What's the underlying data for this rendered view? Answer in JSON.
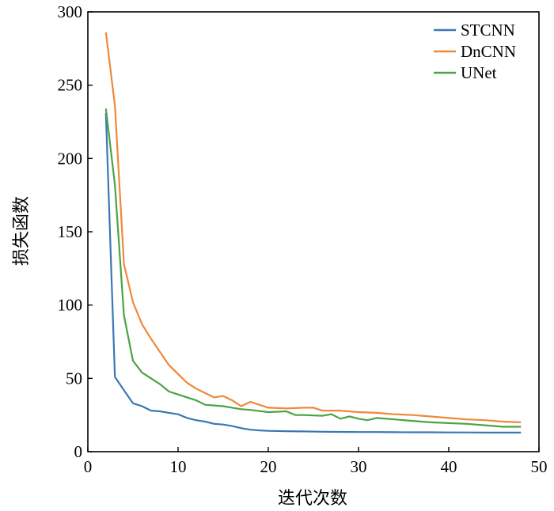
{
  "chart_data": {
    "type": "line",
    "title": "",
    "xlabel": "迭代次数",
    "ylabel": "损失函数",
    "xlim": [
      0,
      50
    ],
    "ylim": [
      0,
      300
    ],
    "xticks": [
      0,
      10,
      20,
      30,
      40,
      50
    ],
    "yticks": [
      0,
      50,
      100,
      150,
      200,
      250,
      300
    ],
    "grid": false,
    "legend_position": "top-right",
    "series": [
      {
        "name": "STCNN",
        "color": "#3a78b5",
        "x": [
          2,
          3,
          4,
          5,
          6,
          7,
          8,
          9,
          10,
          11,
          12,
          13,
          14,
          15,
          16,
          17,
          18,
          19,
          20,
          22,
          24,
          26,
          28,
          30,
          32,
          34,
          36,
          38,
          40,
          42,
          44,
          46,
          48
        ],
        "y": [
          231,
          51,
          42,
          33,
          31,
          28,
          27.5,
          26.5,
          25.5,
          23,
          21.5,
          20.5,
          19,
          18.5,
          17.5,
          16,
          15,
          14.5,
          14.2,
          14,
          13.8,
          13.6,
          13.5,
          13.4,
          13.4,
          13.3,
          13.2,
          13.2,
          13.1,
          13.1,
          13,
          13,
          13
        ]
      },
      {
        "name": "DnCNN",
        "color": "#f0883a",
        "x": [
          2,
          3,
          4,
          5,
          6,
          7,
          8,
          9,
          10,
          11,
          12,
          13,
          14,
          15,
          16,
          17,
          18,
          20,
          22,
          24,
          25,
          26,
          28,
          30,
          32,
          34,
          36,
          38,
          40,
          42,
          44,
          46,
          48
        ],
        "y": [
          286,
          236,
          128,
          102,
          87,
          77,
          68,
          59,
          53,
          47,
          43,
          40,
          37,
          38,
          35,
          31,
          34,
          30,
          29.5,
          30,
          30,
          28,
          28,
          27,
          26.5,
          25.5,
          25,
          24,
          23,
          22,
          21.5,
          20.5,
          20
        ]
      },
      {
        "name": "UNet",
        "color": "#4aa444",
        "x": [
          2,
          3,
          4,
          5,
          6,
          7,
          8,
          9,
          10,
          11,
          12,
          13,
          14,
          15,
          16,
          17,
          18,
          20,
          22,
          23,
          24,
          26,
          27,
          28,
          29,
          30,
          31,
          32,
          34,
          36,
          38,
          40,
          42,
          44,
          46,
          48
        ],
        "y": [
          234,
          182,
          93,
          62,
          54,
          50,
          46,
          41,
          39,
          37,
          35,
          32,
          31.5,
          31,
          30,
          29,
          28.5,
          27,
          27.5,
          25,
          25,
          24.5,
          25.5,
          22.5,
          24,
          22.5,
          21.5,
          23,
          22,
          21,
          20,
          19.5,
          19,
          18,
          17,
          17
        ]
      }
    ]
  }
}
